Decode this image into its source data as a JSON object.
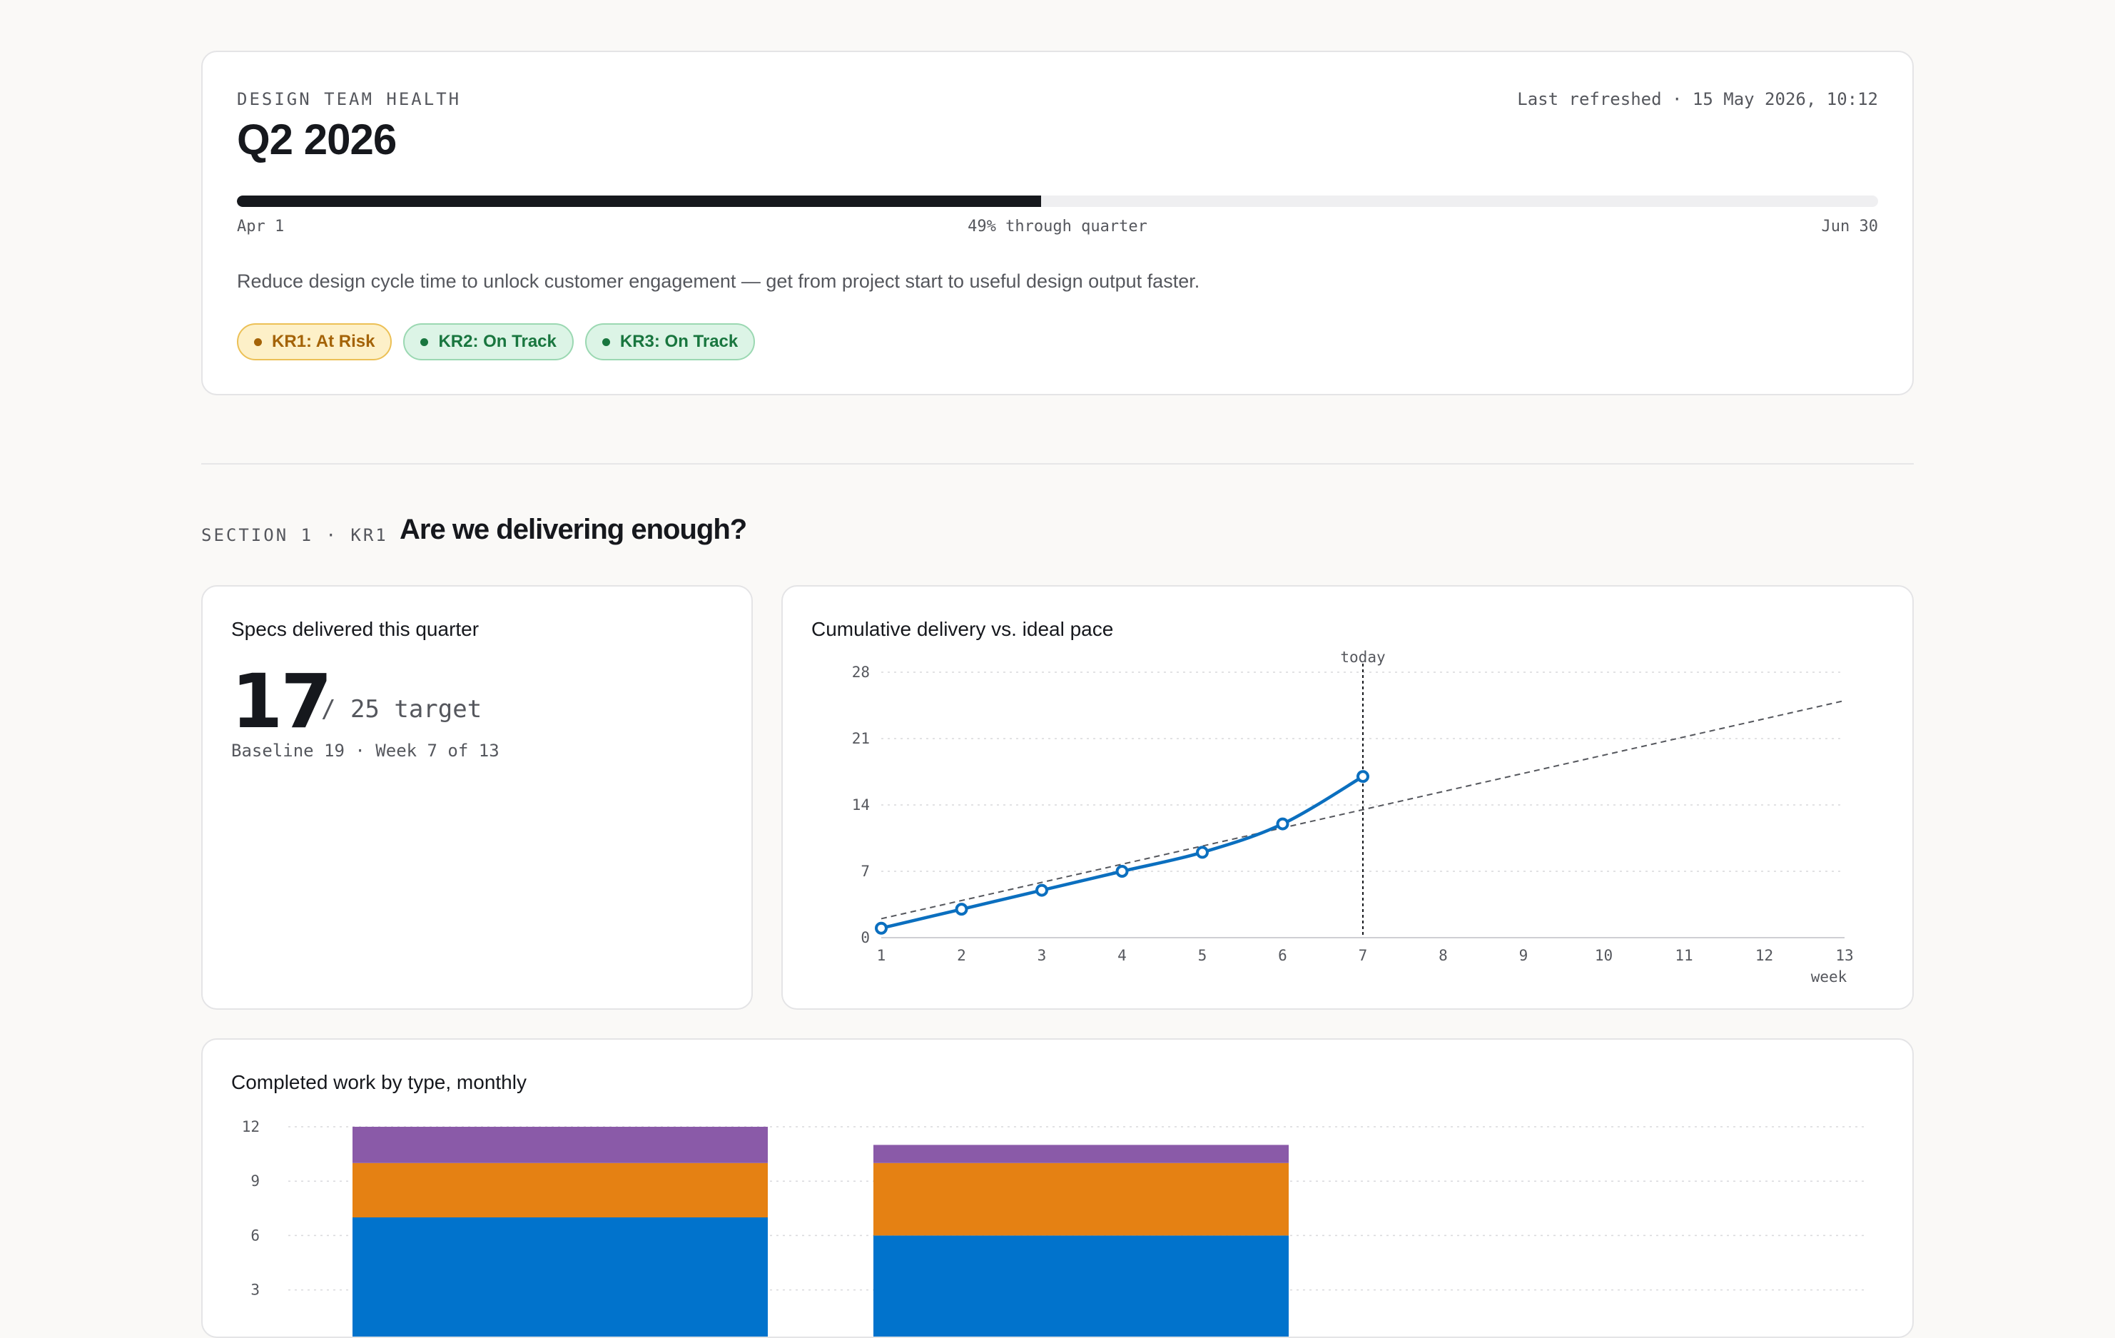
{
  "header": {
    "eyebrow": "DESIGN TEAM HEALTH",
    "title": "Q2 2026",
    "last_refreshed": "Last refreshed · 15 May 2026, 10:12",
    "progress": {
      "fraction": 0.49,
      "start_label": "Apr 1",
      "mid_label": "49% through quarter",
      "end_label": "Jun 30"
    },
    "objective": "Reduce design cycle time to unlock customer engagement — get from project start to useful design output faster.",
    "badges": [
      {
        "label": "KR1: At Risk",
        "status": "risk"
      },
      {
        "label": "KR2: On Track",
        "status": "track"
      },
      {
        "label": "KR3: On Track",
        "status": "track"
      }
    ]
  },
  "section1": {
    "eyebrow": "SECTION 1 · KR1",
    "title": "Are we delivering enough?"
  },
  "kpi": {
    "title": "Specs delivered this quarter",
    "value": "17",
    "target_text": "/ 25 target",
    "subtext": "Baseline 19 · Week 7 of 13"
  },
  "colors": {
    "accent_blue": "#0b6fbf",
    "bar_blue": "#0173cc",
    "bar_orange": "#e58113",
    "bar_purple": "#8a5aa8",
    "risk": "#a46308",
    "track": "#19763f"
  },
  "chart_data": [
    {
      "type": "line",
      "title": "Cumulative delivery vs. ideal pace",
      "xlabel": "week",
      "x": [
        1,
        2,
        3,
        4,
        5,
        6,
        7,
        8,
        9,
        10,
        11,
        12,
        13
      ],
      "xlim": [
        1,
        13
      ],
      "ylim": [
        0,
        28
      ],
      "yticks": [
        0,
        7,
        14,
        21,
        28
      ],
      "grid": true,
      "series": [
        {
          "style": "solid",
          "x": [
            1,
            2,
            3,
            4,
            5,
            6,
            7
          ],
          "values": [
            1,
            3,
            5,
            7,
            9,
            12,
            17
          ]
        },
        {
          "style": "dashed",
          "x": [
            1,
            13
          ],
          "values": [
            2,
            25
          ]
        }
      ],
      "annotation": {
        "x": 7,
        "label": "today"
      }
    },
    {
      "type": "bar",
      "stacked": true,
      "title": "Completed work by type, monthly",
      "categories": [
        "",
        "",
        ""
      ],
      "ylim": [
        0,
        12
      ],
      "yticks": [
        3,
        6,
        9,
        12
      ],
      "grid": true,
      "series": [
        {
          "color": "#0173cc",
          "values": [
            7,
            6,
            0
          ]
        },
        {
          "color": "#e58113",
          "values": [
            3,
            4,
            0
          ]
        },
        {
          "color": "#8a5aa8",
          "values": [
            2,
            1,
            0
          ]
        }
      ]
    }
  ]
}
